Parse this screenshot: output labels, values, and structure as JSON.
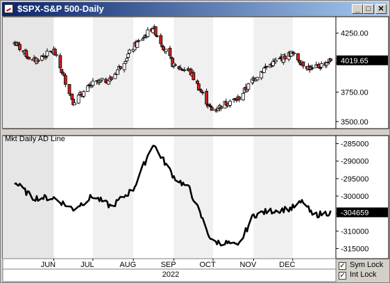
{
  "window": {
    "title": "$SPX-S&P 500-Daily",
    "buttons": {
      "minimize": "_",
      "maximize": "□",
      "close": "✕"
    }
  },
  "controls": {
    "sym_lock": "Sym Lock",
    "int_lock": "Int Lock",
    "sym_checked": true,
    "int_checked": true
  },
  "chart_data": [
    {
      "type": "candlestick",
      "title": "$SPX-S&P 500-Daily",
      "x_dates": [
        "2022-05-02",
        "2022-05-16",
        "2022-06-01",
        "2022-06-16",
        "2022-07-01",
        "2022-07-15",
        "2022-08-01",
        "2022-08-16",
        "2022-09-01",
        "2022-09-13",
        "2022-09-30",
        "2022-10-13",
        "2022-10-20",
        "2022-11-01",
        "2022-11-10",
        "2022-11-30",
        "2022-12-09",
        "2022-12-16",
        "2022-12-30"
      ],
      "close": [
        4170,
        4010,
        4100,
        3670,
        3820,
        3860,
        4130,
        4300,
        3970,
        3930,
        3590,
        3670,
        3690,
        3860,
        3960,
        4080,
        3990,
        3940,
        4020
      ],
      "yticks": [
        3500,
        3750,
        4000,
        4250
      ],
      "ylim": [
        3440,
        4390
      ],
      "last_value": "4019.65",
      "up_color": "#ffffff",
      "down_color": "#cc1f1f"
    },
    {
      "type": "line",
      "title": "Mkt Daily AD Line",
      "x_dates": [
        "2022-05-02",
        "2022-05-16",
        "2022-06-01",
        "2022-06-16",
        "2022-07-01",
        "2022-07-15",
        "2022-08-01",
        "2022-08-16",
        "2022-09-01",
        "2022-09-13",
        "2022-09-30",
        "2022-10-13",
        "2022-10-20",
        "2022-11-01",
        "2022-11-10",
        "2022-11-30",
        "2022-12-09",
        "2022-12-16",
        "2022-12-30"
      ],
      "values": [
        -296000,
        -300500,
        -300500,
        -303700,
        -300000,
        -303000,
        -298000,
        -285000,
        -294500,
        -298000,
        -313000,
        -313500,
        -314500,
        -305500,
        -304500,
        -303500,
        -301500,
        -305500,
        -304659
      ],
      "yticks": [
        -315000,
        -310000,
        -305000,
        -300000,
        -295000,
        -290000,
        -285000
      ],
      "ytick_labels": [
        "-315000",
        "-310000",
        "-305000",
        "-300000",
        "-295000",
        "-290000",
        "-285000"
      ],
      "ylim": [
        -317900,
        -282700
      ],
      "last_value": "-304659",
      "color": "#000000"
    }
  ],
  "x_axis": {
    "months": [
      "JUN",
      "JUL",
      "AUG",
      "SEP",
      "OCT",
      "NOV",
      "DEC"
    ],
    "month_starts": [
      "2022-06-01",
      "2022-07-01",
      "2022-08-01",
      "2022-09-01",
      "2022-10-01",
      "2022-11-01",
      "2022-12-01"
    ],
    "year_label": "2022",
    "range": [
      "2022-04-23",
      "2023-01-03"
    ]
  },
  "price_tick_labels": [
    "3500.00",
    "3750.00",
    "4000.00",
    "4250.00"
  ]
}
